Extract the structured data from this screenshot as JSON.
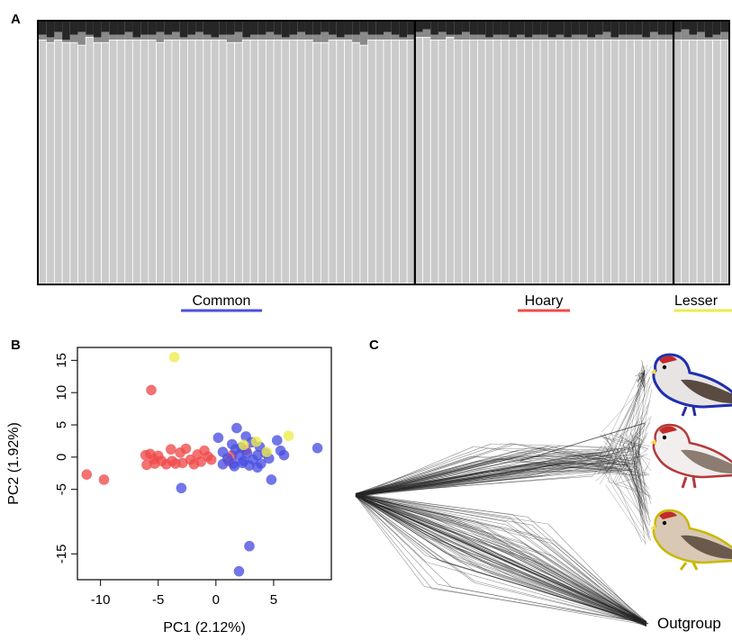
{
  "panels": {
    "a": "A",
    "b": "B",
    "c": "C"
  },
  "colors": {
    "common": "#4a4fe0",
    "hoary": "#ef4a4a",
    "lesser": "#ecec4a",
    "bar_light": "#cbcbcb",
    "bar_dark": "#262626",
    "bar_mid": "#8a8a8a"
  },
  "chart_data": [
    {
      "panel": "A",
      "type": "bar",
      "stacked": true,
      "ylim": [
        0,
        1
      ],
      "groups": [
        {
          "label": "Common",
          "color": "#4a4fe0",
          "n": 48
        },
        {
          "label": "Hoary",
          "color": "#ef4a4a",
          "n": 33
        },
        {
          "label": "Lesser",
          "color": "#ecec4a",
          "n": 7
        }
      ],
      "series": [
        {
          "values": [
            0.05,
            0.06,
            0.04,
            0.07,
            0.05,
            0.04,
            0.05,
            0.06,
            0.04,
            0.05,
            0.05,
            0.04,
            0.06,
            0.05,
            0.05,
            0.04,
            0.05,
            0.04,
            0.06,
            0.05,
            0.04,
            0.05,
            0.06,
            0.05,
            0.05,
            0.04,
            0.06,
            0.05,
            0.05,
            0.04,
            0.05,
            0.06,
            0.05,
            0.04,
            0.05,
            0.05,
            0.04,
            0.05,
            0.06,
            0.05,
            0.05,
            0.04,
            0.05,
            0.05,
            0.04,
            0.05,
            0.06,
            0.05,
            0.04,
            0.03,
            0.05,
            0.04,
            0.05,
            0.05,
            0.04,
            0.05,
            0.05,
            0.06,
            0.05,
            0.05,
            0.06,
            0.05,
            0.06,
            0.05,
            0.05,
            0.06,
            0.05,
            0.06,
            0.05,
            0.05,
            0.06,
            0.05,
            0.04,
            0.06,
            0.05,
            0.05,
            0.05,
            0.06,
            0.04,
            0.05,
            0.05,
            0.04,
            0.03,
            0.05,
            0.04,
            0.06,
            0.05,
            0.04
          ]
        },
        {
          "values": [
            0.02,
            0.02,
            0.03,
            0.01,
            0.03,
            0.05,
            0.01,
            0.02,
            0.04,
            0.02,
            0.02,
            0.03,
            0.01,
            0.02,
            0.02,
            0.04,
            0.02,
            0.03,
            0.01,
            0.02,
            0.03,
            0.02,
            0.01,
            0.02,
            0.03,
            0.04,
            0.01,
            0.02,
            0.02,
            0.03,
            0.02,
            0.01,
            0.02,
            0.03,
            0.02,
            0.03,
            0.04,
            0.02,
            0.01,
            0.02,
            0.03,
            0.05,
            0.02,
            0.02,
            0.03,
            0.02,
            0.01,
            0.02,
            0.02,
            0.03,
            0.02,
            0.03,
            0.01,
            0.02,
            0.03,
            0.02,
            0.02,
            0.01,
            0.02,
            0.02,
            0.01,
            0.02,
            0.01,
            0.02,
            0.02,
            0.01,
            0.02,
            0.01,
            0.02,
            0.02,
            0.01,
            0.02,
            0.03,
            0.01,
            0.02,
            0.02,
            0.02,
            0.01,
            0.03,
            0.02,
            0.02,
            0.03,
            0.04,
            0.02,
            0.03,
            0.01,
            0.02,
            0.03
          ]
        }
      ],
      "xlabel": "",
      "ylabel": "",
      "title": ""
    },
    {
      "panel": "B",
      "type": "scatter",
      "xlabel": "PC1 (2.12%)",
      "ylabel": "PC2 (1.92%)",
      "xlim": [
        -12,
        10
      ],
      "ylim": [
        -19,
        17
      ],
      "xticks": [
        -10,
        -5,
        0,
        5
      ],
      "yticks": [
        -15,
        -5,
        0,
        5,
        10,
        15
      ],
      "series": [
        {
          "color": "#ef4a4a",
          "points": [
            [
              -11.2,
              -2.7
            ],
            [
              -9.7,
              -3.5
            ],
            [
              -5.6,
              10.4
            ],
            [
              -6.1,
              0.3
            ],
            [
              -5.7,
              0.5
            ],
            [
              -5.4,
              -0.3
            ],
            [
              -6.0,
              -1.2
            ],
            [
              -5.3,
              -1.0
            ],
            [
              -4.7,
              -0.6
            ],
            [
              -4.3,
              -1.1
            ],
            [
              -3.8,
              -0.6
            ],
            [
              -3.5,
              -1.0
            ],
            [
              -3.1,
              0.7
            ],
            [
              -2.9,
              -0.9
            ],
            [
              -2.6,
              1.3
            ],
            [
              -2.2,
              -0.4
            ],
            [
              -1.9,
              -1.1
            ],
            [
              -1.6,
              0.4
            ],
            [
              -1.3,
              -0.7
            ],
            [
              -1.0,
              1.0
            ],
            [
              -0.7,
              0.1
            ],
            [
              -0.4,
              -0.4
            ],
            [
              -3.9,
              1.2
            ],
            [
              -5.0,
              0.2
            ],
            [
              1.4,
              0.3
            ],
            [
              2.6,
              1.1
            ],
            [
              1.1,
              -0.6
            ]
          ]
        },
        {
          "color": "#4a4fe0",
          "points": [
            [
              0.2,
              3.0
            ],
            [
              1.8,
              4.5
            ],
            [
              2.6,
              3.2
            ],
            [
              3.1,
              2.3
            ],
            [
              1.4,
              2.0
            ],
            [
              2.2,
              1.5
            ],
            [
              0.6,
              0.8
            ],
            [
              1.0,
              -0.2
            ],
            [
              1.5,
              -1.0
            ],
            [
              2.0,
              0.3
            ],
            [
              2.4,
              -0.6
            ],
            [
              2.7,
              0.6
            ],
            [
              2.9,
              -1.3
            ],
            [
              3.2,
              -0.4
            ],
            [
              3.6,
              0.3
            ],
            [
              3.9,
              -1.0
            ],
            [
              4.3,
              0.6
            ],
            [
              0.6,
              -1.1
            ],
            [
              1.6,
              -1.4
            ],
            [
              2.3,
              -0.9
            ],
            [
              3.6,
              -1.6
            ],
            [
              4.8,
              -3.5
            ],
            [
              5.3,
              2.6
            ],
            [
              5.6,
              1.0
            ],
            [
              5.9,
              0.3
            ],
            [
              8.8,
              1.4
            ],
            [
              -3.0,
              -4.8
            ],
            [
              2.9,
              -13.8
            ],
            [
              2.0,
              -17.7
            ],
            [
              1.7,
              1.2
            ],
            [
              3.8,
              1.6
            ],
            [
              4.6,
              -0.2
            ]
          ]
        },
        {
          "color": "#ecec4a",
          "points": [
            [
              -3.6,
              15.5
            ],
            [
              6.3,
              3.3
            ],
            [
              4.4,
              0.8
            ],
            [
              3.5,
              2.4
            ],
            [
              2.4,
              1.9
            ]
          ]
        }
      ]
    },
    {
      "panel": "C",
      "type": "tree",
      "tips": [
        {
          "label": "",
          "color": "#1f2fb0"
        },
        {
          "label": "",
          "color": "#b33a3a"
        },
        {
          "label": "",
          "color": "#c9b800"
        },
        {
          "label": "Outgroup"
        }
      ]
    }
  ]
}
